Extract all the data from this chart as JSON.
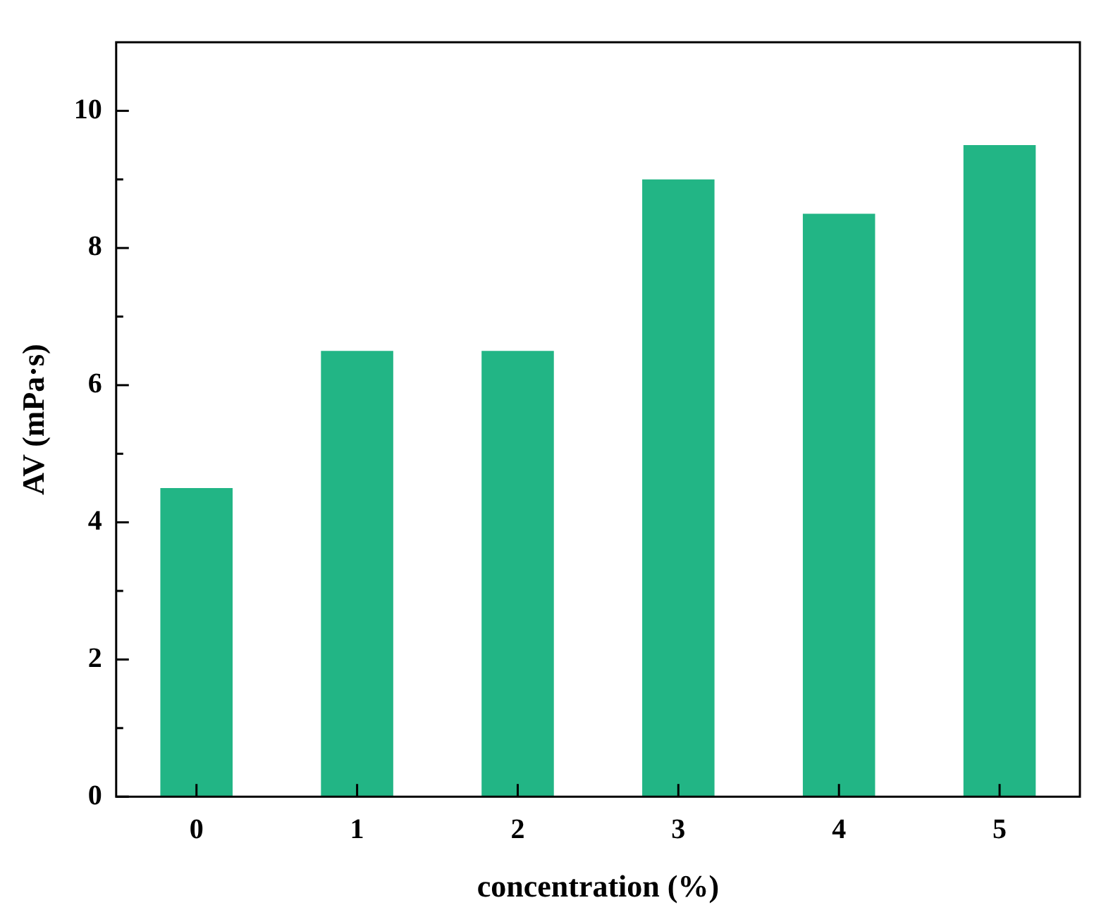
{
  "chart_data": {
    "type": "bar",
    "xlabel": "concentration (%)",
    "ylabel": "AV (mPa·s)",
    "categories": [
      "0",
      "1",
      "2",
      "3",
      "4",
      "5"
    ],
    "values": [
      4.5,
      6.5,
      6.5,
      9.0,
      8.5,
      9.5
    ],
    "color": "#22b585",
    "ylim": [
      0,
      11
    ],
    "yticks": [
      0,
      {
        "value": 1,
        "label": null
      },
      2,
      {
        "value": 3,
        "label": null
      },
      4,
      {
        "value": 5,
        "label": null
      },
      6,
      {
        "value": 7,
        "label": null
      },
      8,
      {
        "value": 9,
        "label": null
      },
      10
    ],
    "grid": false,
    "legend": false
  }
}
